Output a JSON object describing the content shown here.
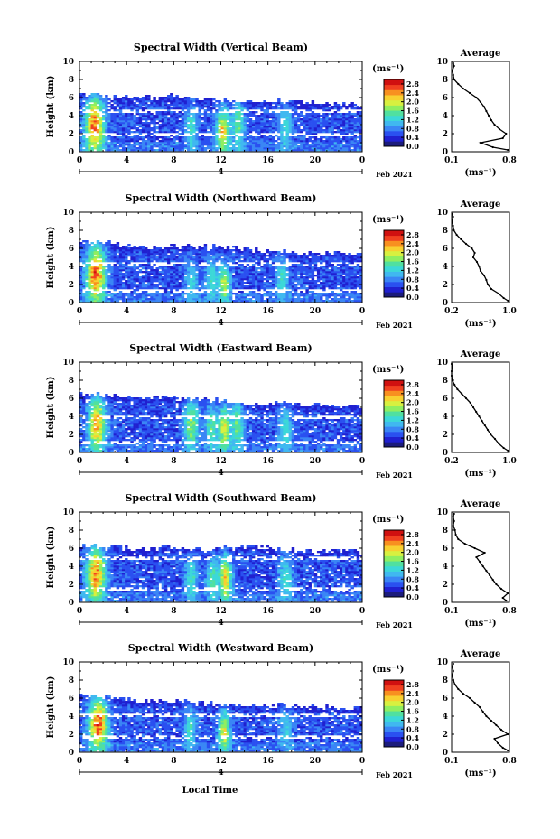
{
  "figure": {
    "x_title": "Local Time",
    "date_label": "Feb 2021",
    "day_label": "4",
    "unit_label": "(ms⁻¹)",
    "avg_title": "Average",
    "avg_unit": "(ms⁻¹)"
  },
  "colors": {
    "scale": [
      "#1c1c7c",
      "#2020d0",
      "#2a50f0",
      "#3a86f5",
      "#40b8f0",
      "#3cd8d8",
      "#50e0a0",
      "#90ee60",
      "#d8f040",
      "#f8d030",
      "#f89020",
      "#f04020",
      "#d01010"
    ]
  },
  "chart_data": [
    {
      "type": "heatmap",
      "title": "Spectral Width (Vertical Beam)",
      "ylabel": "Height (km)",
      "xlabel": "Local Time",
      "xlim": [
        0,
        24
      ],
      "ylim": [
        0,
        10
      ],
      "xticks": [
        "0",
        "4",
        "8",
        "12",
        "16",
        "20",
        "0"
      ],
      "yticks": [
        "0",
        "2",
        "4",
        "6",
        "8",
        "10"
      ],
      "colorbar": {
        "ticks": [
          "0.0",
          "0.4",
          "0.8",
          "1.2",
          "1.6",
          "2.0",
          "2.4",
          "2.8"
        ],
        "range": [
          0,
          3.0
        ]
      },
      "cloud_top_km": [
        6.3,
        6.2,
        6.0,
        5.9,
        6.1,
        5.8,
        5.6,
        5.6,
        5.6,
        5.5,
        5.4,
        5.2,
        5.0
      ],
      "gap_heights_km": [
        1.8,
        4.4
      ],
      "bursts": [
        {
          "t": 1.3,
          "h": 2.8,
          "w": 0.8,
          "d": 3.0,
          "v": 2.9
        },
        {
          "t": 9.5,
          "h": 2.5,
          "w": 0.5,
          "d": 2.5,
          "v": 1.5
        },
        {
          "t": 12.2,
          "h": 2.2,
          "w": 0.6,
          "d": 2.5,
          "v": 2.4
        },
        {
          "t": 13.5,
          "h": 3.0,
          "w": 0.5,
          "d": 3.0,
          "v": 1.7
        },
        {
          "t": 17.5,
          "h": 2.5,
          "w": 0.6,
          "d": 2.5,
          "v": 1.4
        }
      ],
      "avg": {
        "xlim": [
          0.1,
          0.8
        ],
        "xticks": [
          "0.1",
          "0.8"
        ],
        "ylim": [
          0,
          10
        ],
        "yticks": [
          "0",
          "2",
          "4",
          "6",
          "8",
          "10"
        ],
        "h": [
          0.2,
          0.5,
          1.0,
          1.5,
          2.0,
          2.5,
          3.0,
          3.5,
          4.0,
          4.5,
          5.0,
          5.5,
          6.0,
          6.5,
          7.0,
          7.5,
          8.0,
          8.5,
          9.0,
          9.5,
          9.8
        ],
        "v": [
          0.78,
          0.6,
          0.45,
          0.72,
          0.76,
          0.68,
          0.62,
          0.58,
          0.55,
          0.52,
          0.49,
          0.45,
          0.4,
          0.32,
          0.24,
          0.18,
          0.13,
          0.12,
          0.11,
          0.13,
          0.12
        ]
      }
    },
    {
      "type": "heatmap",
      "title": "Spectral Width (Northward Beam)",
      "ylabel": "Height (km)",
      "xlabel": "Local Time",
      "xlim": [
        0,
        24
      ],
      "ylim": [
        0,
        10
      ],
      "xticks": [
        "0",
        "4",
        "8",
        "12",
        "16",
        "20",
        "0"
      ],
      "yticks": [
        "0",
        "2",
        "4",
        "6",
        "8",
        "10"
      ],
      "colorbar": {
        "ticks": [
          "0.0",
          "0.4",
          "0.8",
          "1.2",
          "1.6",
          "2.0",
          "2.4",
          "2.8"
        ],
        "range": [
          0,
          3.0
        ]
      },
      "cloud_top_km": [
        6.8,
        6.6,
        6.2,
        6.0,
        6.2,
        6.0,
        6.1,
        5.8,
        5.6,
        5.6,
        5.4,
        5.3,
        5.4
      ],
      "gap_heights_km": [
        1.2,
        4.2
      ],
      "bursts": [
        {
          "t": 1.4,
          "h": 3.0,
          "w": 0.8,
          "d": 3.2,
          "v": 2.9
        },
        {
          "t": 9.5,
          "h": 2.2,
          "w": 0.5,
          "d": 2.4,
          "v": 1.4
        },
        {
          "t": 11.2,
          "h": 2.5,
          "w": 0.5,
          "d": 2.5,
          "v": 1.5
        },
        {
          "t": 12.3,
          "h": 2.0,
          "w": 0.5,
          "d": 2.0,
          "v": 2.2
        },
        {
          "t": 17.2,
          "h": 2.5,
          "w": 0.5,
          "d": 2.5,
          "v": 1.5
        }
      ],
      "avg": {
        "xlim": [
          0.2,
          1.0
        ],
        "xticks": [
          "0.2",
          "1.0"
        ],
        "ylim": [
          0,
          10
        ],
        "yticks": [
          "0",
          "2",
          "4",
          "6",
          "8",
          "10"
        ],
        "h": [
          0.2,
          0.5,
          1.0,
          1.5,
          2.0,
          2.5,
          3.0,
          3.5,
          4.0,
          4.5,
          5.0,
          5.5,
          6.0,
          6.5,
          7.0,
          7.5,
          8.0,
          8.5,
          9.0,
          9.5,
          9.8
        ],
        "v": [
          0.98,
          0.92,
          0.85,
          0.75,
          0.7,
          0.68,
          0.65,
          0.6,
          0.58,
          0.55,
          0.5,
          0.52,
          0.48,
          0.4,
          0.33,
          0.27,
          0.23,
          0.22,
          0.21,
          0.22,
          0.21
        ]
      }
    },
    {
      "type": "heatmap",
      "title": "Spectral Width (Eastward Beam)",
      "ylabel": "Height (km)",
      "xlabel": "Local Time",
      "xlim": [
        0,
        24
      ],
      "ylim": [
        0,
        10
      ],
      "xticks": [
        "0",
        "4",
        "8",
        "12",
        "16",
        "20",
        "0"
      ],
      "yticks": [
        "0",
        "2",
        "4",
        "6",
        "8",
        "10"
      ],
      "colorbar": {
        "ticks": [
          "0.0",
          "0.4",
          "0.8",
          "1.2",
          "1.6",
          "2.0",
          "2.4",
          "2.8"
        ],
        "range": [
          0,
          3.0
        ]
      },
      "cloud_top_km": [
        6.4,
        6.2,
        6.0,
        5.8,
        6.0,
        5.8,
        5.6,
        5.4,
        5.3,
        5.3,
        5.2,
        5.2,
        5.0
      ],
      "gap_heights_km": [
        1.0,
        3.8
      ],
      "bursts": [
        {
          "t": 1.5,
          "h": 3.0,
          "w": 0.7,
          "d": 3.0,
          "v": 2.7
        },
        {
          "t": 9.5,
          "h": 3.0,
          "w": 0.6,
          "d": 2.8,
          "v": 2.0
        },
        {
          "t": 11.2,
          "h": 2.5,
          "w": 0.5,
          "d": 2.5,
          "v": 1.7
        },
        {
          "t": 12.3,
          "h": 2.5,
          "w": 0.5,
          "d": 2.5,
          "v": 2.3
        },
        {
          "t": 13.4,
          "h": 3.0,
          "w": 0.5,
          "d": 3.0,
          "v": 1.8
        },
        {
          "t": 17.5,
          "h": 2.5,
          "w": 0.6,
          "d": 2.5,
          "v": 1.5
        }
      ],
      "avg": {
        "xlim": [
          0.2,
          1.0
        ],
        "xticks": [
          "0.2",
          "1.0"
        ],
        "ylim": [
          0,
          10
        ],
        "yticks": [
          "0",
          "2",
          "4",
          "6",
          "8",
          "10"
        ],
        "h": [
          0.2,
          0.5,
          1.0,
          1.5,
          2.0,
          2.5,
          3.0,
          3.5,
          4.0,
          4.5,
          5.0,
          5.5,
          6.0,
          6.5,
          7.0,
          7.5,
          8.0,
          8.5,
          9.0,
          9.5,
          9.8
        ],
        "v": [
          0.98,
          0.92,
          0.85,
          0.8,
          0.74,
          0.7,
          0.66,
          0.62,
          0.58,
          0.54,
          0.5,
          0.46,
          0.4,
          0.34,
          0.28,
          0.24,
          0.21,
          0.2,
          0.19,
          0.21,
          0.2
        ]
      }
    },
    {
      "type": "heatmap",
      "title": "Spectral Width (Southward Beam)",
      "ylabel": "Height (km)",
      "xlabel": "Local Time",
      "xlim": [
        0,
        24
      ],
      "ylim": [
        0,
        10
      ],
      "xticks": [
        "0",
        "4",
        "8",
        "12",
        "16",
        "20",
        "0"
      ],
      "yticks": [
        "0",
        "2",
        "4",
        "6",
        "8",
        "10"
      ],
      "colorbar": {
        "ticks": [
          "0.0",
          "0.4",
          "0.8",
          "1.2",
          "1.6",
          "2.0",
          "2.4",
          "2.8"
        ],
        "range": [
          0,
          3.0
        ]
      },
      "cloud_top_km": [
        6.2,
        6.0,
        5.9,
        5.8,
        6.0,
        5.8,
        5.9,
        6.0,
        6.0,
        5.8,
        5.6,
        5.6,
        5.5
      ],
      "gap_heights_km": [
        1.4,
        4.8
      ],
      "bursts": [
        {
          "t": 1.4,
          "h": 3.0,
          "w": 0.8,
          "d": 3.0,
          "v": 2.8
        },
        {
          "t": 9.5,
          "h": 2.5,
          "w": 0.5,
          "d": 2.4,
          "v": 1.6
        },
        {
          "t": 11.3,
          "h": 2.5,
          "w": 0.5,
          "d": 2.4,
          "v": 1.7
        },
        {
          "t": 12.4,
          "h": 2.5,
          "w": 0.5,
          "d": 2.5,
          "v": 2.5
        },
        {
          "t": 17.5,
          "h": 2.5,
          "w": 0.6,
          "d": 2.5,
          "v": 1.5
        }
      ],
      "avg": {
        "xlim": [
          0.1,
          0.8
        ],
        "xticks": [
          "0.1",
          "0.8"
        ],
        "ylim": [
          0,
          10
        ],
        "yticks": [
          "0",
          "2",
          "4",
          "6",
          "8",
          "10"
        ],
        "h": [
          0.2,
          0.5,
          1.0,
          1.5,
          2.0,
          2.5,
          3.0,
          3.5,
          4.0,
          4.5,
          5.0,
          5.5,
          6.0,
          6.5,
          7.0,
          7.5,
          8.0,
          8.5,
          9.0,
          9.5,
          9.8
        ],
        "v": [
          0.76,
          0.72,
          0.78,
          0.7,
          0.64,
          0.6,
          0.56,
          0.52,
          0.48,
          0.44,
          0.4,
          0.5,
          0.38,
          0.26,
          0.18,
          0.15,
          0.14,
          0.12,
          0.13,
          0.12,
          0.13
        ]
      }
    },
    {
      "type": "heatmap",
      "title": "Spectral Width (Westward Beam)",
      "ylabel": "Height (km)",
      "xlabel": "Local Time",
      "xlim": [
        0,
        24
      ],
      "ylim": [
        0,
        10
      ],
      "xticks": [
        "0",
        "4",
        "8",
        "12",
        "16",
        "20",
        "0"
      ],
      "yticks": [
        "0",
        "2",
        "4",
        "6",
        "8",
        "10"
      ],
      "colorbar": {
        "ticks": [
          "0.0",
          "0.4",
          "0.8",
          "1.2",
          "1.6",
          "2.0",
          "2.4",
          "2.8"
        ],
        "range": [
          0,
          3.0
        ]
      },
      "cloud_top_km": [
        6.2,
        6.0,
        5.8,
        5.6,
        5.6,
        5.4,
        5.2,
        5.2,
        5.2,
        5.0,
        5.0,
        4.8,
        4.8
      ],
      "gap_heights_km": [
        1.6,
        4.0
      ],
      "bursts": [
        {
          "t": 1.6,
          "h": 3.0,
          "w": 0.8,
          "d": 3.0,
          "v": 2.9
        },
        {
          "t": 9.4,
          "h": 2.5,
          "w": 0.5,
          "d": 2.2,
          "v": 1.5
        },
        {
          "t": 12.3,
          "h": 2.2,
          "w": 0.5,
          "d": 2.2,
          "v": 2.3
        },
        {
          "t": 17.5,
          "h": 2.5,
          "w": 0.6,
          "d": 2.3,
          "v": 1.3
        }
      ],
      "avg": {
        "xlim": [
          0.1,
          0.8
        ],
        "xticks": [
          "0.1",
          "0.8"
        ],
        "ylim": [
          0,
          10
        ],
        "yticks": [
          "0",
          "2",
          "4",
          "6",
          "8",
          "10"
        ],
        "h": [
          0.2,
          0.5,
          1.0,
          1.5,
          2.0,
          2.5,
          3.0,
          3.5,
          4.0,
          4.5,
          5.0,
          5.5,
          6.0,
          6.5,
          7.0,
          7.5,
          8.0,
          8.5,
          9.0,
          9.5,
          9.8
        ],
        "v": [
          0.78,
          0.72,
          0.66,
          0.62,
          0.78,
          0.7,
          0.64,
          0.58,
          0.52,
          0.48,
          0.44,
          0.38,
          0.32,
          0.24,
          0.18,
          0.14,
          0.12,
          0.11,
          0.12,
          0.11,
          0.12
        ]
      }
    }
  ]
}
